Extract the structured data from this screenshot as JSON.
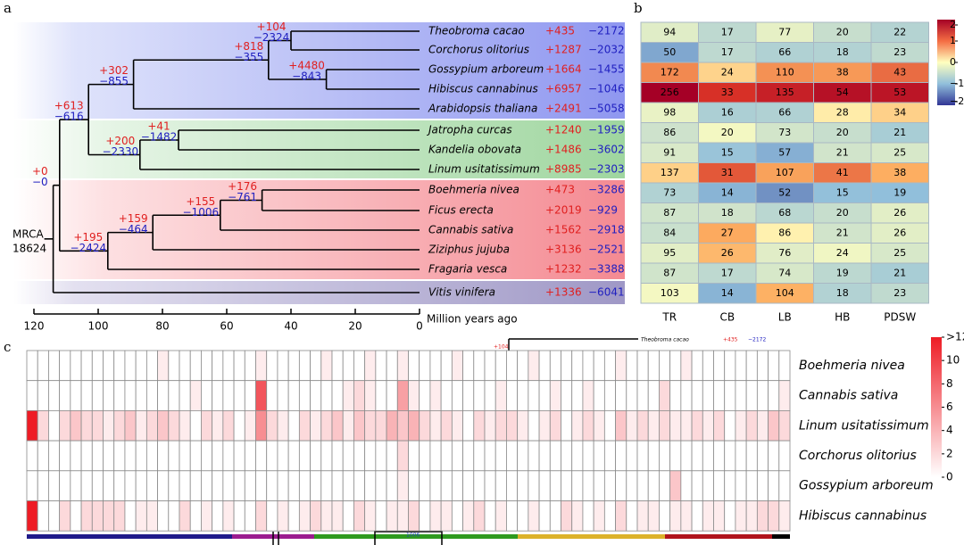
{
  "panel_labels": {
    "a": "a",
    "b": "b",
    "c": "c"
  },
  "tree": {
    "root_label": "MRCA",
    "root_count": "18624",
    "species": [
      {
        "name": "Theobroma cacao",
        "gain": "+435",
        "loss": "−2172"
      },
      {
        "name": "Corchorus olitorius",
        "gain": "+1287",
        "loss": "−2032"
      },
      {
        "name": "Gossypium arboreum",
        "gain": "+1664",
        "loss": "−1455"
      },
      {
        "name": "Hibiscus cannabinus",
        "gain": "+6957",
        "loss": "−1046"
      },
      {
        "name": "Arabidopsis thaliana",
        "gain": "+2491",
        "loss": "−5058"
      },
      {
        "name": "Jatropha curcas",
        "gain": "+1240",
        "loss": "−1959"
      },
      {
        "name": "Kandelia obovata",
        "gain": "+1486",
        "loss": "−3602"
      },
      {
        "name": "Linum usitatissimum",
        "gain": "+8985",
        "loss": "−2303"
      },
      {
        "name": "Boehmeria nivea",
        "gain": "+473",
        "loss": "−3286"
      },
      {
        "name": "Ficus erecta",
        "gain": "+2019",
        "loss": "−929"
      },
      {
        "name": "Cannabis sativa",
        "gain": "+1562",
        "loss": "−2918"
      },
      {
        "name": "Ziziphus jujuba",
        "gain": "+3136",
        "loss": "−2521"
      },
      {
        "name": "Fragaria vesca",
        "gain": "+1232",
        "loss": "−3388"
      },
      {
        "name": "Vitis vinifera",
        "gain": "+1336",
        "loss": "−6041"
      }
    ],
    "nodes": [
      {
        "gain": "+104",
        "loss": "−2324"
      },
      {
        "gain": "+4480",
        "loss": "−843"
      },
      {
        "gain": "+818",
        "loss": "−355"
      },
      {
        "gain": "+302",
        "loss": "−855"
      },
      {
        "gain": "+41",
        "loss": "−1482"
      },
      {
        "gain": "+200",
        "loss": "−2330"
      },
      {
        "gain": "+613",
        "loss": "−616"
      },
      {
        "gain": "+176",
        "loss": "−761"
      },
      {
        "gain": "+155",
        "loss": "−1006"
      },
      {
        "gain": "+159",
        "loss": "−464"
      },
      {
        "gain": "+195",
        "loss": "−2424"
      },
      {
        "gain": "+0",
        "loss": "−0"
      }
    ],
    "axis_label": "Million years ago",
    "xlim": [
      120,
      0
    ],
    "xticks": [
      120,
      100,
      80,
      60,
      40,
      20,
      0
    ]
  },
  "heatmap_b": {
    "columns": [
      "TR",
      "CB",
      "LB",
      "HB",
      "PDSW"
    ],
    "rows": [
      [
        94,
        17,
        77,
        20,
        22
      ],
      [
        50,
        17,
        66,
        18,
        23
      ],
      [
        172,
        24,
        110,
        38,
        43
      ],
      [
        256,
        33,
        135,
        54,
        53
      ],
      [
        98,
        16,
        66,
        28,
        34
      ],
      [
        86,
        20,
        73,
        20,
        21
      ],
      [
        91,
        15,
        57,
        21,
        25
      ],
      [
        137,
        31,
        107,
        41,
        38
      ],
      [
        73,
        14,
        52,
        15,
        19
      ],
      [
        87,
        18,
        68,
        20,
        26
      ],
      [
        84,
        27,
        86,
        21,
        26
      ],
      [
        95,
        26,
        76,
        24,
        25
      ],
      [
        87,
        17,
        74,
        19,
        21
      ],
      [
        103,
        14,
        104,
        18,
        23
      ]
    ],
    "colorbar_ticks": [
      2,
      1,
      0,
      {
        "value": -1,
        "label": "−1"
      },
      {
        "value": -2,
        "label": "−2"
      }
    ]
  },
  "heatmap_c": {
    "rows": [
      "Boehmeria nivea",
      "Cannabis sativa",
      "Linum usitatissimum",
      "Corchorus olitorius",
      "Gossypium arboreum",
      "Hibiscus cannabinus"
    ],
    "values": [
      [
        0,
        0,
        0,
        0,
        0,
        0,
        0,
        0,
        0,
        0,
        0,
        0,
        1,
        0,
        0,
        0,
        0,
        0,
        0,
        0,
        0,
        1,
        0,
        0,
        0,
        0,
        0,
        1,
        0,
        0,
        0,
        1,
        0,
        0,
        1,
        0,
        0,
        0,
        0,
        1,
        0,
        0,
        0,
        0,
        0,
        0,
        1,
        0,
        0,
        0,
        0,
        0,
        0,
        0,
        1,
        0,
        0,
        0,
        0,
        0,
        1,
        0,
        0,
        0,
        0,
        0,
        0,
        0,
        0,
        0
      ],
      [
        0,
        0,
        0,
        0,
        0,
        0,
        0,
        0,
        0,
        0,
        0,
        0,
        0,
        0,
        0,
        1,
        0,
        0,
        0,
        0,
        0,
        9,
        0,
        0,
        0,
        0,
        0,
        0,
        0,
        1,
        2,
        1,
        0,
        0,
        5,
        1,
        0,
        1,
        0,
        0,
        0,
        0,
        0,
        1,
        0,
        0,
        0,
        0,
        1,
        0,
        0,
        1,
        0,
        0,
        0,
        0,
        0,
        0,
        2,
        0,
        0,
        0,
        0,
        0,
        0,
        0,
        0,
        0,
        0,
        1
      ],
      [
        12,
        2,
        0,
        2,
        3,
        2,
        2,
        1,
        2,
        3,
        1,
        2,
        3,
        2,
        1,
        0,
        2,
        1,
        2,
        0,
        1,
        6,
        2,
        1,
        0,
        2,
        1,
        2,
        3,
        1,
        3,
        2,
        2,
        4,
        3,
        4,
        2,
        1,
        2,
        1,
        0,
        2,
        1,
        2,
        2,
        1,
        0,
        1,
        2,
        0,
        1,
        2,
        1,
        0,
        3,
        1,
        2,
        1,
        2,
        1,
        1,
        2,
        1,
        2,
        0,
        1,
        2,
        1,
        3,
        2
      ],
      [
        0,
        0,
        0,
        0,
        0,
        0,
        0,
        0,
        0,
        0,
        0,
        0,
        0,
        0,
        0,
        0,
        0,
        0,
        0,
        0,
        0,
        0,
        0,
        0,
        0,
        0,
        0,
        0,
        0,
        0,
        0,
        0,
        0,
        0,
        2,
        0,
        0,
        0,
        0,
        0,
        0,
        0,
        0,
        0,
        0,
        0,
        0,
        0,
        0,
        0,
        0,
        0,
        0,
        0,
        0,
        0,
        0,
        0,
        0,
        0,
        0,
        0,
        0,
        0,
        0,
        0,
        0,
        0,
        0,
        0
      ],
      [
        0,
        0,
        0,
        0,
        0,
        0,
        0,
        0,
        0,
        0,
        0,
        0,
        0,
        0,
        0,
        0,
        0,
        0,
        0,
        0,
        0,
        0,
        0,
        0,
        0,
        0,
        0,
        0,
        0,
        0,
        0,
        0,
        0,
        0,
        1,
        0,
        0,
        0,
        0,
        0,
        0,
        0,
        0,
        0,
        0,
        0,
        0,
        0,
        0,
        0,
        0,
        0,
        0,
        0,
        0,
        0,
        0,
        0,
        0,
        3,
        0,
        0,
        0,
        0,
        0,
        0,
        0,
        0,
        0,
        0
      ],
      [
        12,
        0,
        0,
        2,
        0,
        2,
        2,
        2,
        2,
        0,
        1,
        1,
        0,
        0,
        2,
        0,
        1,
        0,
        1,
        0,
        0,
        2,
        0,
        1,
        0,
        1,
        2,
        1,
        1,
        0,
        2,
        1,
        0,
        1,
        1,
        2,
        0,
        1,
        1,
        0,
        1,
        2,
        0,
        1,
        0,
        0,
        1,
        0,
        0,
        2,
        1,
        0,
        1,
        0,
        2,
        0,
        1,
        1,
        0,
        1,
        1,
        0,
        1,
        1,
        0,
        1,
        1,
        2,
        2,
        1
      ]
    ],
    "colorbar_ticks": [
      {
        "value": 12,
        "label": ">12"
      },
      10,
      8,
      6,
      4,
      2,
      0
    ],
    "inset": {
      "gain": "+104",
      "name": "Theobroma cacao",
      "tip_gain": "+435",
      "tip_loss": "−2172",
      "fragment": "1006"
    }
  }
}
